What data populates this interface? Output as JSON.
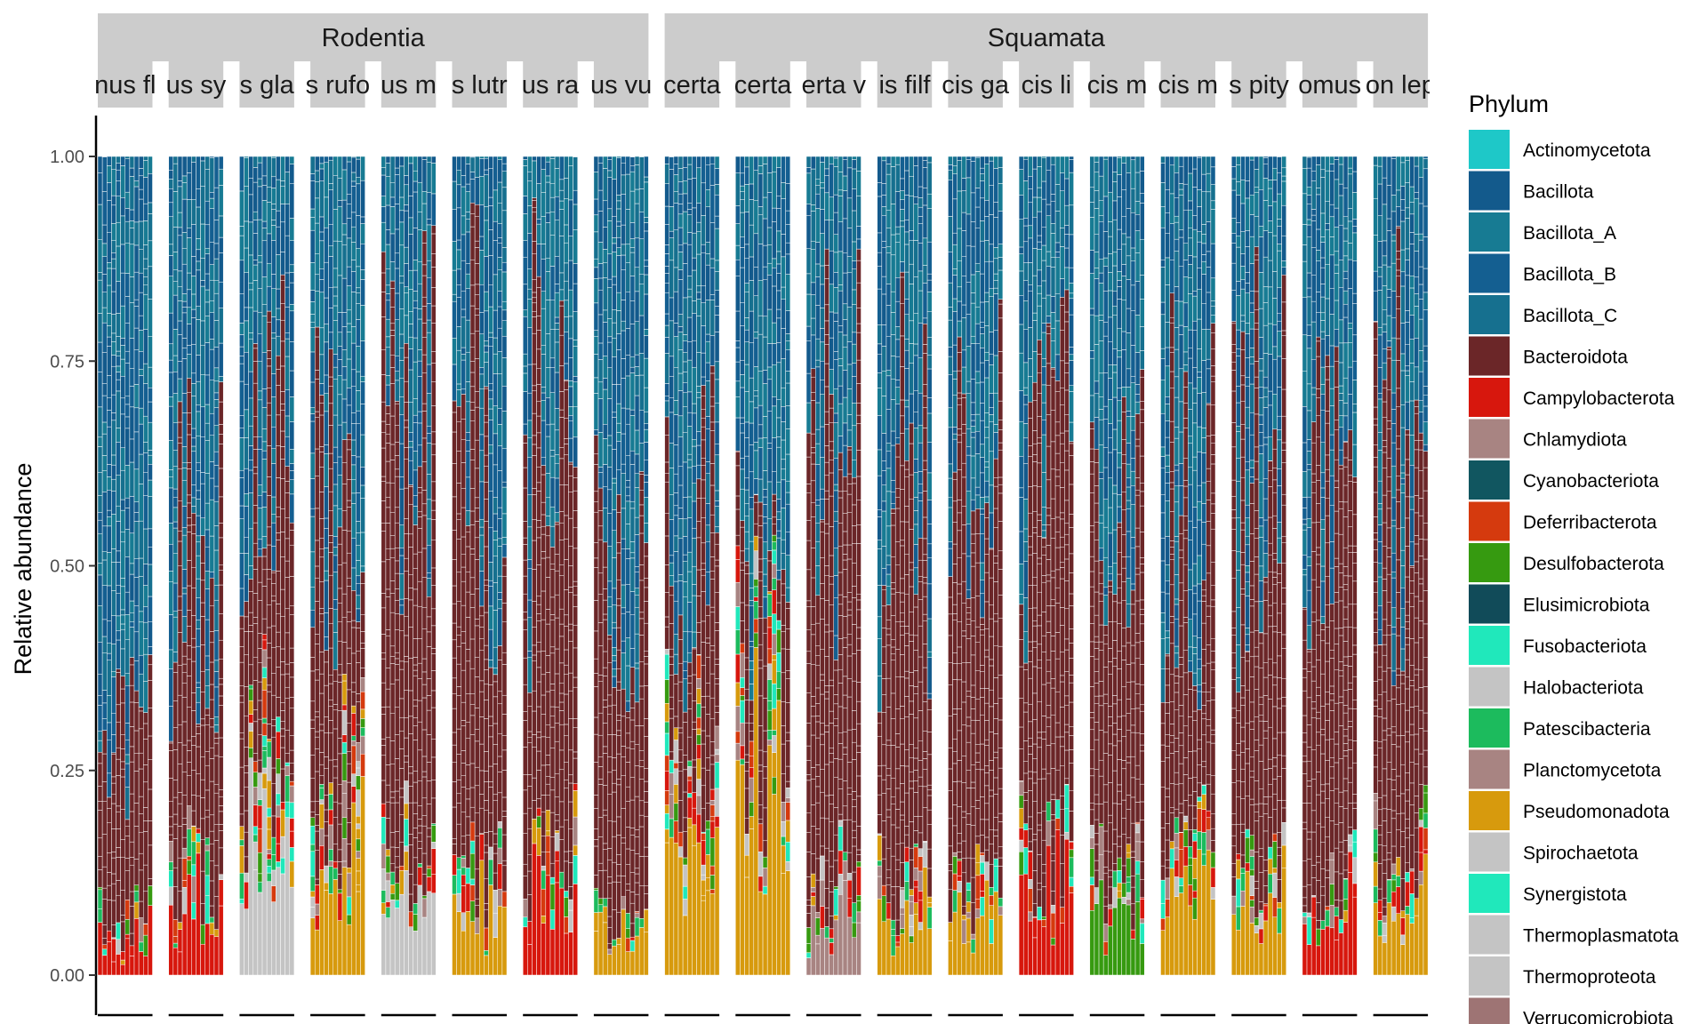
{
  "chart_data": {
    "type": "bar",
    "stacked": true,
    "ylabel": "Relative abundance",
    "ylim": [
      0,
      1
    ],
    "yticks": [
      "0.00",
      "0.25",
      "0.50",
      "0.75",
      "1.00"
    ],
    "legend": {
      "title": "Phylum",
      "position": "right"
    },
    "groups": [
      {
        "name": "Rodentia",
        "panels": [
          "nus fl",
          "us sy",
          "s gla",
          "s rufo",
          "us m",
          "s lutr",
          "us ra",
          "us vu"
        ]
      },
      {
        "name": "Squamata",
        "panels": [
          "certa",
          "certa",
          "erta v",
          "is filf",
          "cis ga",
          "cis li",
          "cis m",
          "cis m",
          "s pity",
          "omus",
          "on lep"
        ]
      }
    ],
    "panel_profiles": [
      {
        "bacteroidota_top": 0.45,
        "bacteroidota_start": 0.07,
        "accent": "Campylobacterota"
      },
      {
        "bacteroidota_top": 0.77,
        "bacteroidota_start": 0.13,
        "accent": "Campylobacterota"
      },
      {
        "bacteroidota_top": 0.9,
        "bacteroidota_start": 0.28,
        "accent": "Halobacteriota"
      },
      {
        "bacteroidota_top": 0.85,
        "bacteroidota_start": 0.25,
        "accent": "Pseudomonadota"
      },
      {
        "bacteroidota_top": 0.98,
        "bacteroidota_start": 0.15,
        "accent": "Halobacteriota"
      },
      {
        "bacteroidota_top": 0.97,
        "bacteroidota_start": 0.12,
        "accent": "Pseudomonadota"
      },
      {
        "bacteroidota_top": 0.95,
        "bacteroidota_start": 0.15,
        "accent": "Campylobacterota"
      },
      {
        "bacteroidota_top": 0.66,
        "bacteroidota_start": 0.07,
        "accent": "Pseudomonadota"
      },
      {
        "bacteroidota_top": 0.77,
        "bacteroidota_start": 0.28,
        "accent": "Pseudomonadota"
      },
      {
        "bacteroidota_top": 0.65,
        "bacteroidota_start": 0.35,
        "accent": "Pseudomonadota"
      },
      {
        "bacteroidota_top": 0.9,
        "bacteroidota_start": 0.12,
        "accent": "Chlamydiota"
      },
      {
        "bacteroidota_top": 0.88,
        "bacteroidota_start": 0.12,
        "accent": "Pseudomonadota"
      },
      {
        "bacteroidota_top": 0.87,
        "bacteroidota_start": 0.1,
        "accent": "Pseudomonadota"
      },
      {
        "bacteroidota_top": 0.87,
        "bacteroidota_start": 0.15,
        "accent": "Campylobacterota"
      },
      {
        "bacteroidota_top": 0.74,
        "bacteroidota_start": 0.12,
        "accent": "Desulfobacterota"
      },
      {
        "bacteroidota_top": 0.84,
        "bacteroidota_start": 0.15,
        "accent": "Pseudomonadota"
      },
      {
        "bacteroidota_top": 0.92,
        "bacteroidota_start": 0.12,
        "accent": "Pseudomonadota"
      },
      {
        "bacteroidota_top": 0.88,
        "bacteroidota_start": 0.12,
        "accent": "Campylobacterota"
      },
      {
        "bacteroidota_top": 0.92,
        "bacteroidota_start": 0.15,
        "accent": "Pseudomonadota"
      }
    ],
    "series": [
      {
        "name": "Actinomycetota",
        "color": "#1ec8c8"
      },
      {
        "name": "Bacillota",
        "color": "#135a8c"
      },
      {
        "name": "Bacillota_A",
        "color": "#177b93"
      },
      {
        "name": "Bacillota_B",
        "color": "#145f91"
      },
      {
        "name": "Bacillota_C",
        "color": "#16708f"
      },
      {
        "name": "Bacteroidota",
        "color": "#6b2628"
      },
      {
        "name": "Campylobacterota",
        "color": "#d7170d"
      },
      {
        "name": "Chlamydiota",
        "color": "#a88482"
      },
      {
        "name": "Cyanobacteriota",
        "color": "#115660"
      },
      {
        "name": "Deferribacterota",
        "color": "#d53a0e"
      },
      {
        "name": "Desulfobacterota",
        "color": "#369a10"
      },
      {
        "name": "Elusimicrobiota",
        "color": "#114b59"
      },
      {
        "name": "Fusobacteriota",
        "color": "#20e8bb"
      },
      {
        "name": "Halobacteriota",
        "color": "#c4c4c4"
      },
      {
        "name": "Patescibacteria",
        "color": "#1cbb5d"
      },
      {
        "name": "Planctomycetota",
        "color": "#a88482"
      },
      {
        "name": "Pseudomonadota",
        "color": "#d79a0d"
      },
      {
        "name": "Spirochaetota",
        "color": "#c4c4c4"
      },
      {
        "name": "Synergistota",
        "color": "#20e8bb"
      },
      {
        "name": "Thermoplasmatota",
        "color": "#c4c4c4"
      },
      {
        "name": "Thermoproteota",
        "color": "#c4c4c4"
      },
      {
        "name": "Verrucomicrobiota",
        "color": "#9e7474"
      }
    ]
  }
}
